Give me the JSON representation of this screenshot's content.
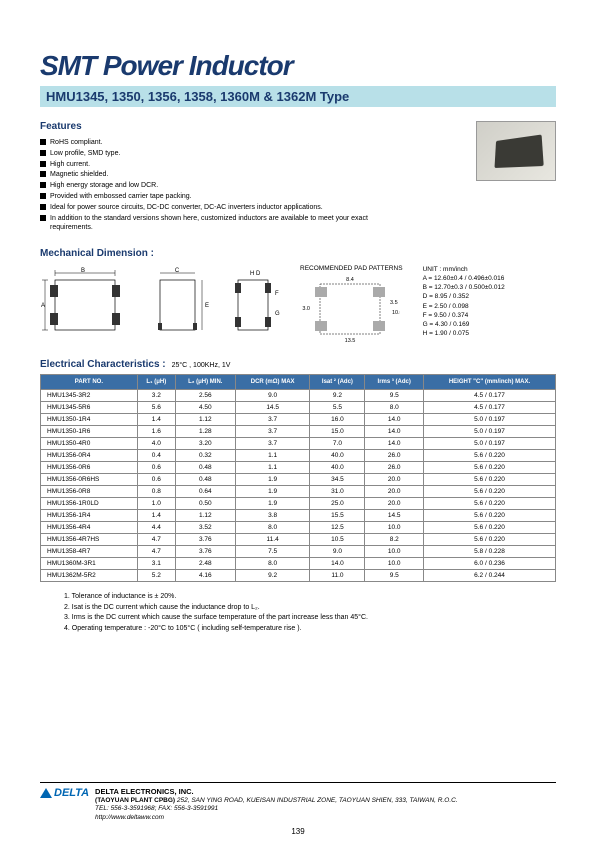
{
  "title": "SMT Power Inductor",
  "subtitle": "HMU1345, 1350, 1356, 1358, 1360M & 1362M Type",
  "features_head": "Features",
  "features": [
    "RoHS compliant.",
    "Low profile, SMD type.",
    "High current.",
    "Magnetic shielded.",
    "High energy storage and low DCR.",
    "Provided with embossed carrier tape packing.",
    "Ideal for power source circuits, DC-DC converter, DC-AC inverters inductor applications.",
    "In addition to the standard versions shown here, customized inductors are available to meet your exact requirements."
  ],
  "mech_head": "Mechanical Dimension :",
  "pad_label": "RECOMMENDED PAD PATTERNS",
  "unit_lines": [
    "UNIT : mm/inch",
    "A = 12.60±0.4 / 0.496±0.016",
    "B = 12.70±0.3 / 0.500±0.012",
    "D = 8.95 / 0.352",
    "E = 2.50 / 0.098",
    "F = 9.50 / 0.374",
    "G = 4.30 / 0.169",
    "H = 1.90 / 0.075"
  ],
  "elec_head": "Electrical Characteristics :",
  "elec_cond": "25°C , 100KHz, 1V",
  "columns": [
    "PART NO.",
    "L₁ (μH)",
    "L₂ (μH) MIN.",
    "DCR (mΩ) MAX",
    "Isat ² (Adc)",
    "Irms ³ (Adc)",
    "HEIGHT \"C\" (mm/inch) MAX."
  ],
  "rows": [
    [
      "HMU1345-3R2",
      "3.2",
      "2.56",
      "9.0",
      "9.2",
      "9.5",
      "4.5 / 0.177"
    ],
    [
      "HMU1345-5R6",
      "5.6",
      "4.50",
      "14.5",
      "5.5",
      "8.0",
      "4.5 / 0.177"
    ],
    [
      "HMU1350-1R4",
      "1.4",
      "1.12",
      "3.7",
      "16.0",
      "14.0",
      "5.0 / 0.197"
    ],
    [
      "HMU1350-1R6",
      "1.6",
      "1.28",
      "3.7",
      "15.0",
      "14.0",
      "5.0 / 0.197"
    ],
    [
      "HMU1350-4R0",
      "4.0",
      "3.20",
      "3.7",
      "7.0",
      "14.0",
      "5.0 / 0.197"
    ],
    [
      "HMU1356-0R4",
      "0.4",
      "0.32",
      "1.1",
      "40.0",
      "26.0",
      "5.6 / 0.220"
    ],
    [
      "HMU1356-0R6",
      "0.6",
      "0.48",
      "1.1",
      "40.0",
      "26.0",
      "5.6 / 0.220"
    ],
    [
      "HMU1356-0R6HS",
      "0.6",
      "0.48",
      "1.9",
      "34.5",
      "20.0",
      "5.6 / 0.220"
    ],
    [
      "HMU1356-0R8",
      "0.8",
      "0.64",
      "1.9",
      "31.0",
      "20.0",
      "5.6 / 0.220"
    ],
    [
      "HMU1356-1R0LD",
      "1.0",
      "0.50",
      "1.9",
      "25.0",
      "20.0",
      "5.6 / 0.220"
    ],
    [
      "HMU1356-1R4",
      "1.4",
      "1.12",
      "3.8",
      "15.5",
      "14.5",
      "5.6 / 0.220"
    ],
    [
      "HMU1356-4R4",
      "4.4",
      "3.52",
      "8.0",
      "12.5",
      "10.0",
      "5.6 / 0.220"
    ],
    [
      "HMU1356-4R7HS",
      "4.7",
      "3.76",
      "11.4",
      "10.5",
      "8.2",
      "5.6 / 0.220"
    ],
    [
      "HMU1358-4R7",
      "4.7",
      "3.76",
      "7.5",
      "9.0",
      "10.0",
      "5.8 / 0.228"
    ],
    [
      "HMU1360M-3R1",
      "3.1",
      "2.48",
      "8.0",
      "14.0",
      "10.0",
      "6.0 / 0.236"
    ],
    [
      "HMU1362M-5R2",
      "5.2",
      "4.16",
      "9.2",
      "11.0",
      "9.5",
      "6.2 / 0.244"
    ]
  ],
  "notes": [
    "1. Tolerance of inductance is ± 20%.",
    "2. Isat is the DC current which cause the inductance drop to L₂.",
    "3. Irms is the DC current which cause the surface temperature of the part increase less than 45°C.",
    "4. Operating temperature : -20°C to 105°C ( including self-temperature rise )."
  ],
  "logo_text": "DELTA",
  "company": "DELTA ELECTRONICS, INC.",
  "plant": "(TAOYUAN PLANT CPBG)",
  "address": "252, SAN YING ROAD, KUEISAN INDUSTRIAL ZONE, TAOYUAN SHIEN, 333, TAIWAN, R.O.C.",
  "tel": "TEL: 556-3-3591968; FAX: 556-3-3591991",
  "url": "http://www.deltaww.com",
  "page": "139"
}
